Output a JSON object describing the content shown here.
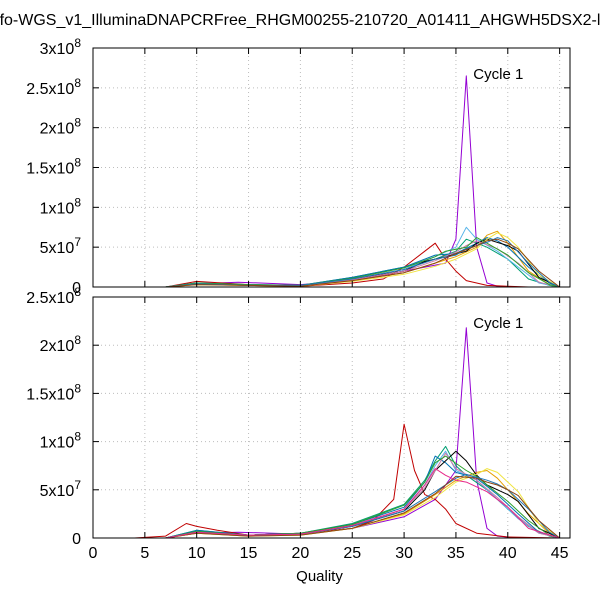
{
  "title": "fo-WGS_v1_IlluminaDNAPCRFree_RHGM00255-210720_A01411_AHGWH5DSX2-l",
  "chart_data": [
    {
      "type": "line",
      "panel": "top",
      "annotation": "Cycle 1",
      "xlabel": "",
      "ylabel": "",
      "xlim": [
        0,
        46
      ],
      "ylim": [
        0,
        300000000
      ],
      "yticks": [
        {
          "value": 0,
          "base": "0",
          "exp": ""
        },
        {
          "value": 50000000,
          "base": "5x10",
          "exp": "7"
        },
        {
          "value": 100000000,
          "base": "1x10",
          "exp": "8"
        },
        {
          "value": 150000000,
          "base": "1.5x10",
          "exp": "8"
        },
        {
          "value": 200000000,
          "base": "2x10",
          "exp": "8"
        },
        {
          "value": 250000000,
          "base": "2.5x10",
          "exp": "8"
        },
        {
          "value": 300000000,
          "base": "3x10",
          "exp": "8"
        }
      ],
      "grid": true,
      "series": [
        {
          "color": "#9400d3",
          "x": [
            7,
            10,
            14,
            20,
            25,
            30,
            34,
            35,
            36,
            37,
            38,
            39,
            41,
            43,
            45
          ],
          "y": [
            0,
            4000000,
            6000000,
            3000000,
            8000000,
            20000000,
            30000000,
            60000000,
            265000000,
            50000000,
            5000000,
            1000000,
            0,
            0,
            0
          ]
        },
        {
          "color": "#c00000",
          "x": [
            7,
            10,
            15,
            20,
            25,
            28,
            30,
            32,
            33,
            34,
            35,
            36,
            38,
            40,
            42,
            45
          ],
          "y": [
            0,
            7000000,
            3000000,
            1000000,
            5000000,
            10000000,
            25000000,
            45000000,
            55000000,
            35000000,
            20000000,
            8000000,
            2000000,
            1000000,
            0,
            0
          ]
        },
        {
          "color": "#009e73",
          "x": [
            7,
            10,
            15,
            20,
            25,
            30,
            33,
            35,
            36,
            37,
            38,
            40,
            42,
            44,
            45
          ],
          "y": [
            0,
            5000000,
            2000000,
            2000000,
            12000000,
            25000000,
            35000000,
            45000000,
            60000000,
            55000000,
            50000000,
            35000000,
            10000000,
            2000000,
            0
          ]
        },
        {
          "color": "#56b4e9",
          "x": [
            7,
            10,
            15,
            20,
            25,
            30,
            33,
            35,
            36,
            37,
            39,
            41,
            43,
            45
          ],
          "y": [
            0,
            4000000,
            2000000,
            2000000,
            10000000,
            22000000,
            38000000,
            50000000,
            75000000,
            60000000,
            45000000,
            25000000,
            5000000,
            0
          ]
        },
        {
          "color": "#e69f00",
          "x": [
            7,
            10,
            15,
            20,
            25,
            30,
            33,
            35,
            37,
            38,
            39,
            40,
            42,
            44,
            45
          ],
          "y": [
            0,
            3000000,
            2000000,
            1000000,
            8000000,
            18000000,
            30000000,
            38000000,
            50000000,
            65000000,
            70000000,
            55000000,
            20000000,
            3000000,
            0
          ]
        },
        {
          "color": "#0072b2",
          "x": [
            7,
            10,
            15,
            20,
            25,
            30,
            33,
            35,
            37,
            38,
            39,
            40,
            42,
            44,
            45
          ],
          "y": [
            0,
            5000000,
            3000000,
            2000000,
            12000000,
            25000000,
            40000000,
            42000000,
            55000000,
            62000000,
            58000000,
            50000000,
            25000000,
            5000000,
            0
          ]
        },
        {
          "color": "#000000",
          "x": [
            7,
            10,
            15,
            20,
            25,
            30,
            32,
            34,
            36,
            37,
            38,
            40,
            41,
            43,
            45
          ],
          "y": [
            0,
            4000000,
            2000000,
            2000000,
            10000000,
            20000000,
            32000000,
            38000000,
            45000000,
            55000000,
            60000000,
            52000000,
            45000000,
            12000000,
            0
          ]
        },
        {
          "color": "#f0e442",
          "x": [
            7,
            10,
            15,
            20,
            25,
            30,
            33,
            35,
            37,
            38,
            39,
            40,
            41,
            43,
            45
          ],
          "y": [
            0,
            3000000,
            2000000,
            1000000,
            7000000,
            16000000,
            26000000,
            35000000,
            48000000,
            60000000,
            68000000,
            62000000,
            50000000,
            15000000,
            0
          ]
        },
        {
          "color": "#cc79a7",
          "x": [
            7,
            10,
            15,
            20,
            25,
            30,
            33,
            35,
            36,
            37,
            39,
            41,
            43,
            45
          ],
          "y": [
            0,
            4000000,
            2000000,
            2000000,
            9000000,
            20000000,
            33000000,
            44000000,
            52000000,
            58000000,
            48000000,
            30000000,
            6000000,
            0
          ]
        },
        {
          "color": "#2ca02c",
          "x": [
            7,
            10,
            15,
            20,
            25,
            30,
            33,
            34,
            36,
            37,
            38,
            40,
            42,
            44,
            45
          ],
          "y": [
            0,
            5000000,
            3000000,
            2000000,
            11000000,
            24000000,
            38000000,
            45000000,
            50000000,
            62000000,
            55000000,
            40000000,
            18000000,
            3000000,
            0
          ]
        },
        {
          "color": "#1f77b4",
          "x": [
            7,
            10,
            15,
            20,
            25,
            30,
            33,
            35,
            36,
            38,
            39,
            40,
            42,
            44,
            45
          ],
          "y": [
            0,
            4000000,
            2000000,
            2000000,
            10000000,
            22000000,
            35000000,
            40000000,
            48000000,
            56000000,
            62000000,
            58000000,
            30000000,
            6000000,
            0
          ]
        },
        {
          "color": "#8b4513",
          "x": [
            7,
            10,
            15,
            20,
            25,
            30,
            33,
            35,
            37,
            38,
            39,
            40,
            41,
            43,
            45
          ],
          "y": [
            0,
            3000000,
            2000000,
            1000000,
            8000000,
            18000000,
            30000000,
            42000000,
            52000000,
            58000000,
            60000000,
            55000000,
            48000000,
            20000000,
            0
          ]
        }
      ]
    },
    {
      "type": "line",
      "panel": "bottom",
      "annotation": "Cycle 1",
      "xlabel": "Quality",
      "ylabel": "",
      "xlim": [
        0,
        46
      ],
      "ylim": [
        0,
        250000000
      ],
      "xticks": [
        0,
        5,
        10,
        15,
        20,
        25,
        30,
        35,
        40,
        45
      ],
      "yticks": [
        {
          "value": 0,
          "base": "0",
          "exp": ""
        },
        {
          "value": 50000000,
          "base": "5x10",
          "exp": "7"
        },
        {
          "value": 100000000,
          "base": "1x10",
          "exp": "8"
        },
        {
          "value": 150000000,
          "base": "1.5x10",
          "exp": "8"
        },
        {
          "value": 200000000,
          "base": "2x10",
          "exp": "8"
        },
        {
          "value": 250000000,
          "base": "2.5x10",
          "exp": "8"
        }
      ],
      "grid": true,
      "series": [
        {
          "color": "#9400d3",
          "x": [
            1,
            3,
            7,
            10,
            14,
            20,
            25,
            30,
            33,
            34,
            35,
            36,
            37,
            38,
            39,
            41,
            43,
            45
          ],
          "y": [
            0,
            0,
            0,
            5000000,
            6000000,
            4000000,
            10000000,
            22000000,
            40000000,
            55000000,
            70000000,
            218000000,
            60000000,
            10000000,
            2000000,
            0,
            0,
            0
          ]
        },
        {
          "color": "#c00000",
          "x": [
            1,
            4,
            7,
            9,
            10,
            12,
            15,
            20,
            25,
            27,
            29,
            30,
            31,
            32,
            33,
            34,
            35,
            37,
            40,
            45
          ],
          "y": [
            0,
            0,
            2000000,
            15000000,
            12000000,
            8000000,
            3000000,
            5000000,
            10000000,
            18000000,
            40000000,
            118000000,
            70000000,
            45000000,
            40000000,
            30000000,
            15000000,
            5000000,
            1000000,
            0
          ]
        },
        {
          "color": "#009e73",
          "x": [
            1,
            4,
            7,
            10,
            15,
            20,
            25,
            30,
            32,
            33,
            34,
            35,
            36,
            38,
            40,
            42,
            44,
            45
          ],
          "y": [
            0,
            0,
            0,
            8000000,
            3000000,
            5000000,
            15000000,
            35000000,
            60000000,
            80000000,
            95000000,
            75000000,
            65000000,
            50000000,
            30000000,
            12000000,
            2000000,
            0
          ]
        },
        {
          "color": "#56b4e9",
          "x": [
            1,
            4,
            7,
            10,
            15,
            20,
            25,
            30,
            32,
            33,
            34,
            35,
            37,
            39,
            41,
            43,
            45
          ],
          "y": [
            0,
            0,
            0,
            7000000,
            3000000,
            4000000,
            12000000,
            30000000,
            55000000,
            75000000,
            90000000,
            70000000,
            60000000,
            40000000,
            20000000,
            5000000,
            0
          ]
        },
        {
          "color": "#e69f00",
          "x": [
            1,
            4,
            7,
            10,
            15,
            20,
            25,
            30,
            33,
            35,
            37,
            38,
            39,
            40,
            42,
            44,
            45
          ],
          "y": [
            0,
            0,
            0,
            5000000,
            2000000,
            3000000,
            10000000,
            25000000,
            45000000,
            60000000,
            68000000,
            70000000,
            62000000,
            50000000,
            25000000,
            5000000,
            0
          ]
        },
        {
          "color": "#0072b2",
          "x": [
            1,
            4,
            7,
            10,
            15,
            20,
            25,
            30,
            32,
            33,
            34,
            35,
            37,
            39,
            41,
            43,
            45
          ],
          "y": [
            0,
            0,
            0,
            8000000,
            3000000,
            5000000,
            14000000,
            32000000,
            58000000,
            85000000,
            78000000,
            68000000,
            62000000,
            45000000,
            25000000,
            6000000,
            0
          ]
        },
        {
          "color": "#000000",
          "x": [
            1,
            4,
            7,
            10,
            15,
            20,
            25,
            30,
            32,
            33,
            35,
            36,
            37,
            38,
            40,
            41,
            43,
            45
          ],
          "y": [
            0,
            0,
            0,
            6000000,
            3000000,
            4000000,
            12000000,
            28000000,
            50000000,
            70000000,
            90000000,
            80000000,
            65000000,
            55000000,
            45000000,
            38000000,
            10000000,
            0
          ]
        },
        {
          "color": "#f0e442",
          "x": [
            1,
            4,
            7,
            10,
            15,
            20,
            25,
            30,
            33,
            35,
            37,
            38,
            39,
            40,
            41,
            43,
            45
          ],
          "y": [
            0,
            0,
            0,
            5000000,
            2000000,
            3000000,
            10000000,
            24000000,
            42000000,
            58000000,
            66000000,
            72000000,
            68000000,
            58000000,
            48000000,
            15000000,
            0
          ]
        },
        {
          "color": "#cc79a7",
          "x": [
            1,
            4,
            7,
            10,
            15,
            20,
            25,
            30,
            32,
            34,
            35,
            36,
            37,
            39,
            41,
            43,
            45
          ],
          "y": [
            0,
            0,
            0,
            6000000,
            3000000,
            4000000,
            12000000,
            30000000,
            52000000,
            88000000,
            72000000,
            66000000,
            60000000,
            42000000,
            22000000,
            5000000,
            0
          ]
        },
        {
          "color": "#2ca02c",
          "x": [
            1,
            4,
            7,
            10,
            15,
            20,
            25,
            30,
            32,
            33,
            34,
            36,
            37,
            38,
            40,
            42,
            44,
            45
          ],
          "y": [
            0,
            0,
            0,
            7000000,
            3000000,
            5000000,
            14000000,
            34000000,
            58000000,
            78000000,
            85000000,
            70000000,
            64000000,
            55000000,
            38000000,
            18000000,
            3000000,
            0
          ]
        },
        {
          "color": "#1f77b4",
          "x": [
            1,
            4,
            7,
            10,
            15,
            20,
            25,
            30,
            33,
            35,
            36,
            38,
            39,
            40,
            42,
            44,
            45
          ],
          "y": [
            0,
            0,
            0,
            6000000,
            3000000,
            4000000,
            12000000,
            28000000,
            48000000,
            62000000,
            66000000,
            60000000,
            56000000,
            50000000,
            30000000,
            6000000,
            0
          ]
        },
        {
          "color": "#8b4513",
          "x": [
            1,
            4,
            7,
            10,
            15,
            20,
            25,
            30,
            33,
            35,
            37,
            38,
            39,
            40,
            41,
            43,
            45
          ],
          "y": [
            0,
            0,
            0,
            5000000,
            2000000,
            3000000,
            10000000,
            26000000,
            46000000,
            64000000,
            62000000,
            58000000,
            55000000,
            50000000,
            44000000,
            18000000,
            0
          ]
        },
        {
          "color": "#e7298a",
          "x": [
            1,
            4,
            7,
            10,
            15,
            20,
            25,
            30,
            32,
            33,
            34,
            35,
            36,
            38,
            40,
            42,
            45
          ],
          "y": [
            0,
            0,
            0,
            6000000,
            3000000,
            4000000,
            13000000,
            30000000,
            55000000,
            72000000,
            65000000,
            60000000,
            58000000,
            48000000,
            32000000,
            10000000,
            0
          ]
        }
      ]
    }
  ]
}
